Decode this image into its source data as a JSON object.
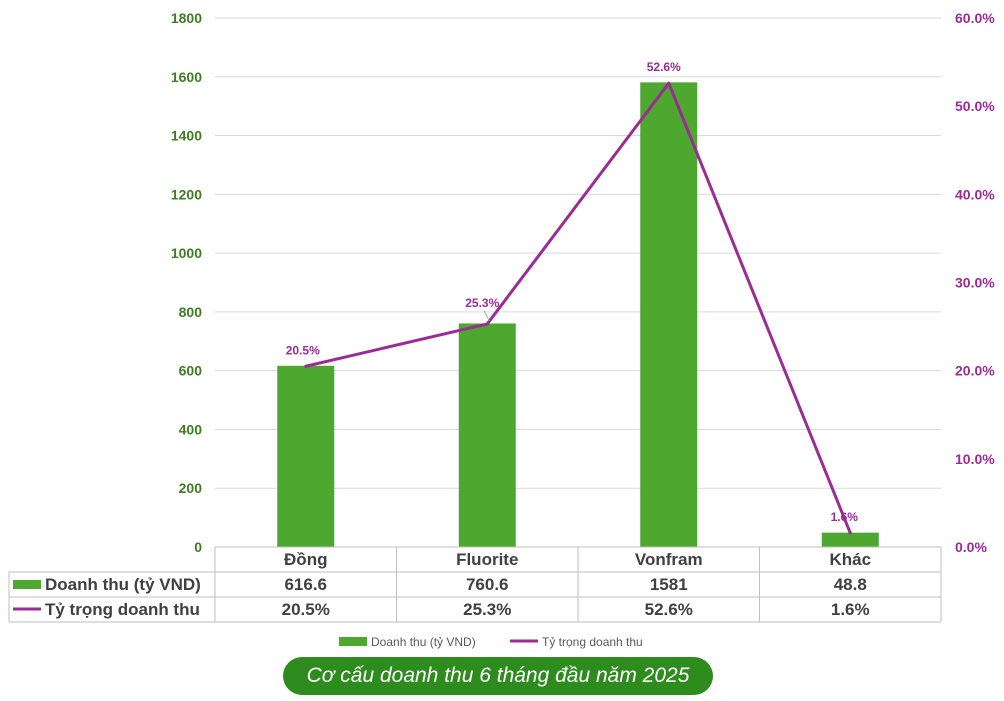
{
  "chart_data": {
    "type": "bar",
    "categories": [
      "Đồng",
      "Fluorite",
      "Vonfram",
      "Khác"
    ],
    "series": [
      {
        "name": "Doanh thu (tỷ VND)",
        "type": "bar",
        "axis": "left",
        "values": [
          616.6,
          760.6,
          1581,
          48.8
        ],
        "table_values": [
          "616.6",
          "760.6",
          "1581",
          "48.8"
        ],
        "color": "#4ea72e"
      },
      {
        "name": "Tỷ trọng doanh thu",
        "type": "line",
        "axis": "right",
        "values": [
          20.5,
          25.3,
          52.6,
          1.6
        ],
        "labels": [
          "20.5%",
          "25.3%",
          "52.6%",
          "1.6%"
        ],
        "color": "#9a2c96"
      }
    ],
    "y_left": {
      "ylim": [
        0,
        1800
      ],
      "ticks": [
        "0",
        "200",
        "400",
        "600",
        "800",
        "1000",
        "1200",
        "1400",
        "1600",
        "1800"
      ]
    },
    "y_right": {
      "ylim": [
        0,
        60
      ],
      "ticks": [
        "0.0%",
        "10.0%",
        "20.0%",
        "30.0%",
        "40.0%",
        "50.0%",
        "60.0%"
      ]
    },
    "grid": true,
    "legend": "bottom",
    "data_table": true
  },
  "caption": "Cơ cấu doanh thu 6 tháng đầu năm 2025"
}
